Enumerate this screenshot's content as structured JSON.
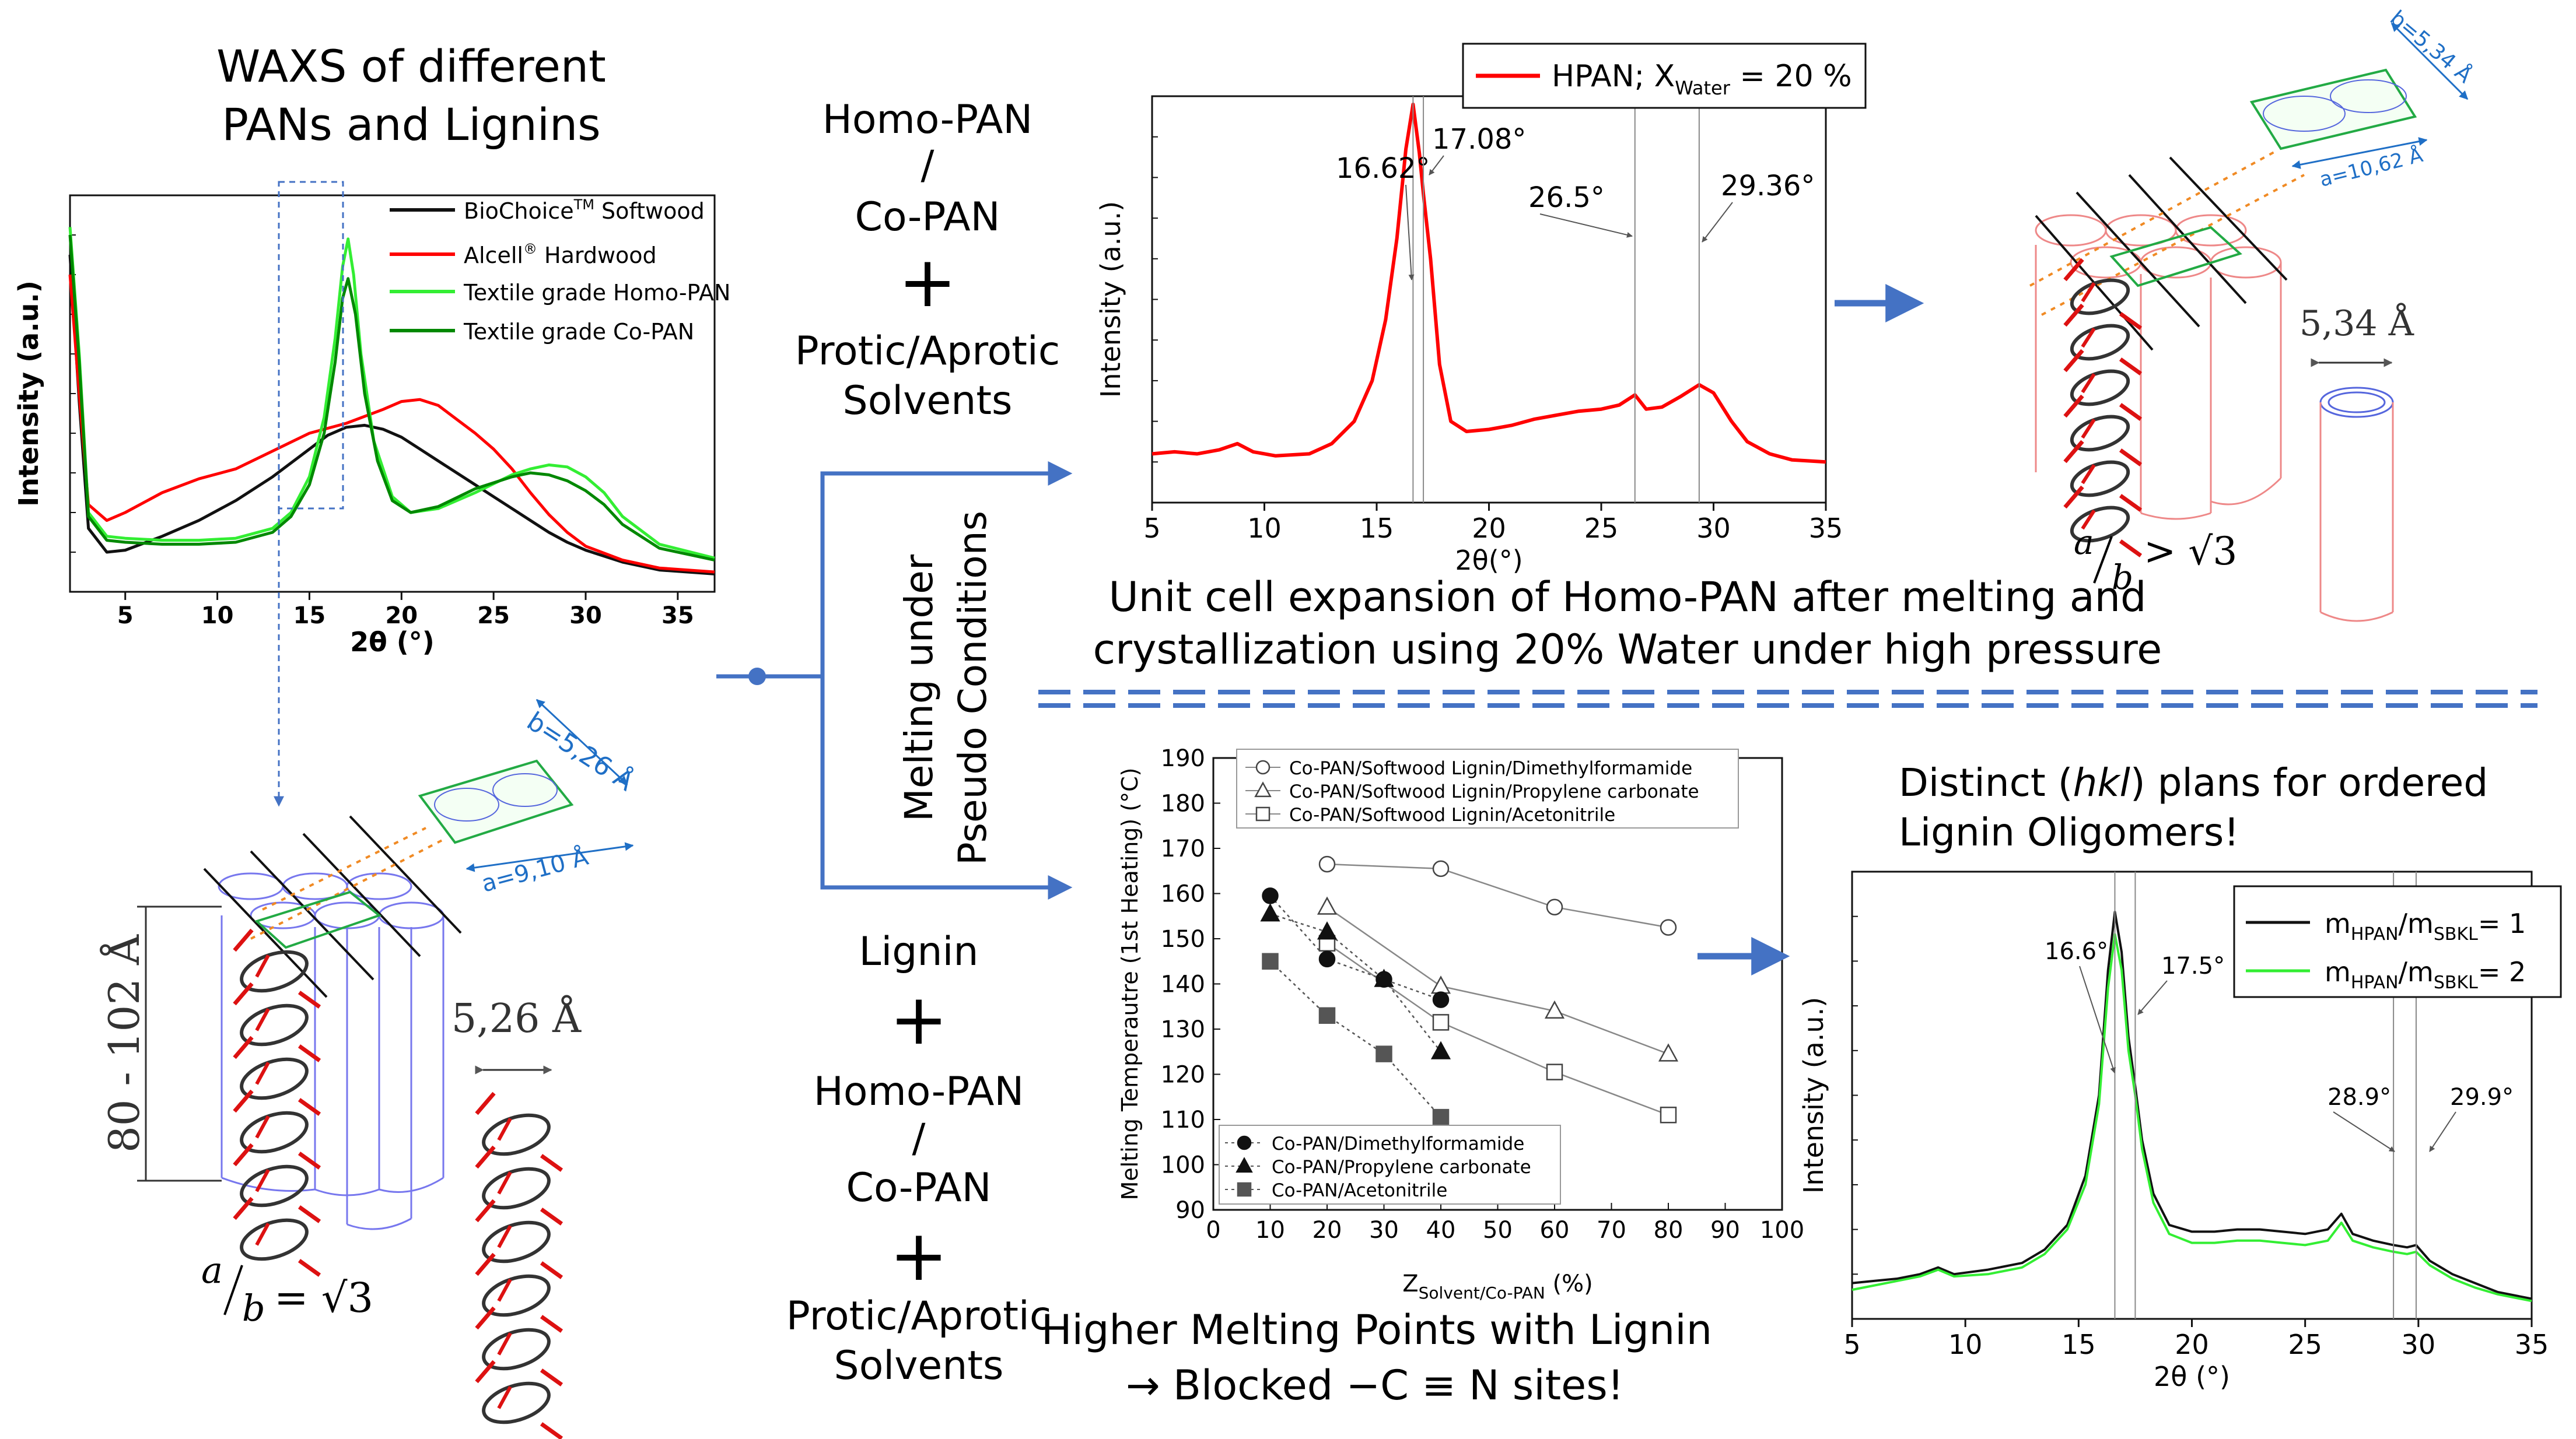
{
  "colors": {
    "arrow_blue": "#4472c4",
    "red": "#ff0000",
    "light_green": "#33ee33",
    "dark_green": "#008800",
    "black": "#111111",
    "helix_red": "#dd1111",
    "cell_green": "#22aa44",
    "dim_blue": "#1f6fc6"
  },
  "panel_waxs": {
    "title_line1": "WAXS of different",
    "title_line2": "PANs and Lignins",
    "chart_data": {
      "type": "line",
      "title": "WAXS of different PANs and Lignins",
      "xlabel": "2θ (°)",
      "ylabel": "Intensity (a.u.)",
      "xlim": [
        2,
        37
      ],
      "ylim": [
        0,
        10
      ],
      "xticks": [
        5,
        10,
        15,
        20,
        25,
        30,
        35
      ],
      "legend_position": "top-right",
      "series": [
        {
          "name": "BioChoice™ Softwood",
          "color": "#111111",
          "x": [
            2,
            2.5,
            3,
            4,
            5,
            7,
            9,
            11,
            13,
            15,
            16,
            17,
            18,
            19,
            20,
            21,
            22,
            23,
            24,
            25,
            26,
            27,
            28,
            29,
            30,
            32,
            34,
            37
          ],
          "y": [
            8.5,
            4.8,
            1.6,
            1.0,
            1.05,
            1.4,
            1.8,
            2.3,
            2.9,
            3.6,
            3.95,
            4.15,
            4.2,
            4.1,
            3.9,
            3.6,
            3.3,
            3.0,
            2.7,
            2.4,
            2.1,
            1.8,
            1.5,
            1.25,
            1.05,
            0.75,
            0.55,
            0.45
          ]
        },
        {
          "name": "Alcell® Hardwood",
          "color": "#ff0000",
          "x": [
            2,
            2.5,
            3,
            4,
            5,
            7,
            9,
            11,
            13,
            15,
            17,
            19,
            20,
            21,
            22,
            23,
            24,
            25,
            26,
            27,
            28,
            29,
            30,
            32,
            34,
            37
          ],
          "y": [
            8.0,
            5.0,
            2.2,
            1.8,
            2.0,
            2.5,
            2.85,
            3.1,
            3.55,
            4.0,
            4.25,
            4.6,
            4.8,
            4.85,
            4.7,
            4.35,
            4.0,
            3.6,
            3.1,
            2.5,
            1.95,
            1.5,
            1.15,
            0.8,
            0.6,
            0.5
          ]
        },
        {
          "name": "Textile grade Homo-PAN",
          "color": "#33ee33",
          "x": [
            2,
            2.5,
            3,
            4,
            5,
            7,
            9,
            11,
            13,
            14,
            15,
            15.8,
            16.4,
            16.8,
            17.1,
            17.4,
            17.8,
            18.5,
            19.5,
            20.5,
            22,
            24,
            26,
            27,
            28,
            29,
            30,
            31,
            32,
            34,
            37
          ],
          "y": [
            9.2,
            6.0,
            2.0,
            1.4,
            1.35,
            1.3,
            1.3,
            1.35,
            1.6,
            2.0,
            2.9,
            4.4,
            6.4,
            8.2,
            8.9,
            8.0,
            6.0,
            3.8,
            2.4,
            2.0,
            2.1,
            2.5,
            2.95,
            3.1,
            3.2,
            3.15,
            2.9,
            2.5,
            1.9,
            1.2,
            0.85
          ]
        },
        {
          "name": "Textile grade Co-PAN",
          "color": "#008800",
          "x": [
            2,
            2.5,
            3,
            4,
            5,
            7,
            9,
            11,
            13,
            14,
            15,
            15.8,
            16.4,
            16.8,
            17.1,
            17.5,
            18,
            18.7,
            19.5,
            20.5,
            22,
            24,
            26,
            27,
            28,
            29,
            30,
            31,
            32,
            34,
            37
          ],
          "y": [
            9.0,
            5.8,
            1.9,
            1.3,
            1.25,
            1.2,
            1.2,
            1.25,
            1.5,
            1.9,
            2.7,
            4.0,
            5.8,
            7.4,
            7.9,
            7.0,
            5.0,
            3.3,
            2.3,
            2.0,
            2.15,
            2.6,
            2.9,
            3.0,
            2.95,
            2.8,
            2.55,
            2.2,
            1.7,
            1.1,
            0.8
          ]
        }
      ]
    },
    "legend": [
      {
        "base": "BioChoice",
        "sup": "TM",
        "tail": " Softwood"
      },
      {
        "base": "Alcell",
        "sup": "®",
        "tail": " Hardwood"
      },
      {
        "base": "Textile grade Homo-PAN",
        "sup": "",
        "tail": ""
      },
      {
        "base": "Textile grade Co-PAN",
        "sup": "",
        "tail": ""
      }
    ]
  },
  "panel_unitcell_left": {
    "b_label": "b=5,26 Å",
    "a_label": "a=9,10 Å",
    "height_label": "80 - 102 Å",
    "spacing_label": "5,26 Å",
    "ratio_a": "a",
    "ratio_b": "b",
    "ratio_eq": "= √3"
  },
  "center_top": {
    "lines": [
      "Homo-PAN",
      "/",
      "Co-PAN",
      "+",
      "Protic/Aprotic",
      "Solvents"
    ]
  },
  "center_bottom": {
    "lines": [
      "Lignin",
      "+",
      "Homo-PAN",
      "/",
      "Co-PAN",
      "+",
      "Protic/Aprotic",
      "Solvents"
    ]
  },
  "branch_label": {
    "line1": "Melting under",
    "line2": "Pseudo Conditions"
  },
  "panel_hpan": {
    "legend_base": "HPAN; X",
    "legend_sub": "Water",
    "legend_tail": " = 20 %",
    "chart_data": {
      "type": "line",
      "xlabel": "2θ(°)",
      "ylabel": "Intensity (a.u.)",
      "xlim": [
        5,
        35
      ],
      "ylim": [
        0,
        10
      ],
      "xticks": [
        5,
        10,
        15,
        20,
        25,
        30,
        35
      ],
      "legend_position": "top-right",
      "series": [
        {
          "name": "HPAN; XWater = 20 %",
          "color": "#ff0000",
          "x": [
            5,
            6,
            7,
            8,
            8.8,
            9.5,
            10.5,
            12,
            13,
            14,
            14.8,
            15.4,
            15.9,
            16.3,
            16.62,
            16.9,
            17.08,
            17.4,
            17.8,
            18.3,
            19,
            20,
            21,
            22,
            23,
            24,
            25,
            25.8,
            26.5,
            27,
            27.7,
            28.5,
            29.36,
            30,
            30.8,
            31.5,
            32.5,
            33.5,
            35
          ],
          "y": [
            1.2,
            1.25,
            1.2,
            1.3,
            1.45,
            1.25,
            1.15,
            1.2,
            1.45,
            2.0,
            3.0,
            4.5,
            6.5,
            8.7,
            9.8,
            8.6,
            7.6,
            6.0,
            3.4,
            2.0,
            1.75,
            1.8,
            1.9,
            2.05,
            2.15,
            2.25,
            2.3,
            2.4,
            2.65,
            2.3,
            2.35,
            2.6,
            2.9,
            2.7,
            2.0,
            1.5,
            1.2,
            1.05,
            1.0
          ]
        }
      ]
    },
    "annotations": [
      {
        "label": "16.62°",
        "x": 16.62
      },
      {
        "label": "17.08°",
        "x": 17.08
      },
      {
        "label": "26.5°",
        "x": 26.5
      },
      {
        "label": "29.36°",
        "x": 29.36
      }
    ],
    "caption_line1": "Unit cell expansion of Homo-PAN after melting and",
    "caption_line2": "crystallization using 20% Water under high pressure"
  },
  "panel_unitcell_right": {
    "b_label": "b=5,34 Å",
    "a_label": "a=10,62 Å",
    "spacing_label": "5,34 Å",
    "ratio_a": "a",
    "ratio_b": "b",
    "ratio_eq": "> √3"
  },
  "panel_melting": {
    "chart_data": {
      "type": "scatter",
      "xlabel_base": "Z",
      "xlabel_sub": "Solvent/Co-PAN",
      "xlabel_tail": " (%)",
      "ylabel": "Melting Temperautre (1st Heating) (°C)",
      "xlim": [
        0,
        100
      ],
      "ylim": [
        90,
        190
      ],
      "xticks": [
        0,
        10,
        20,
        30,
        40,
        50,
        60,
        70,
        80,
        90,
        100
      ],
      "yticks": [
        90,
        100,
        110,
        120,
        130,
        140,
        150,
        160,
        170,
        180,
        190
      ],
      "series": [
        {
          "name": "Co-PAN/Softwood Lignin/Dimethylformamide",
          "marker": "circle-open",
          "line": "solid",
          "x": [
            20,
            40,
            60,
            80
          ],
          "y": [
            166.5,
            165.5,
            157,
            152.5
          ]
        },
        {
          "name": "Co-PAN/Softwood Lignin/Propylene carbonate",
          "marker": "triangle-open",
          "line": "solid",
          "x": [
            20,
            40,
            60,
            80
          ],
          "y": [
            157,
            139.5,
            134,
            124.5
          ]
        },
        {
          "name": "Co-PAN/Softwood Lignin/Acetonitrile",
          "marker": "square-open",
          "line": "solid",
          "x": [
            20,
            40,
            60,
            80
          ],
          "y": [
            149,
            131.5,
            120.5,
            111
          ]
        },
        {
          "name": "Co-PAN/Dimethylformamide",
          "marker": "circle-filled",
          "line": "dotted",
          "x": [
            10,
            20,
            30,
            40
          ],
          "y": [
            159.5,
            145.5,
            141,
            136.5
          ]
        },
        {
          "name": "Co-PAN/Propylene carbonate",
          "marker": "triangle-filled",
          "line": "dotted",
          "x": [
            10,
            20,
            30,
            40
          ],
          "y": [
            155.5,
            151.5,
            141,
            125
          ]
        },
        {
          "name": "Co-PAN/Acetonitrile",
          "marker": "square-filled",
          "line": "dotted",
          "x": [
            10,
            20,
            30,
            40
          ],
          "y": [
            145,
            133,
            124.5,
            110.5
          ]
        }
      ]
    },
    "caption_line1": "Higher Melting Points with Lignin",
    "caption_line2": "→ Blocked −C ≡ N sites!"
  },
  "panel_lignin_waxs": {
    "heading_line1_pre": "Distinct (",
    "heading_line1_em": "hkl",
    "heading_line1_post": ") plans for ordered",
    "heading_line2": "Lignin Oligomers!",
    "legend": [
      {
        "m1": "m",
        "s1": "HPAN",
        "slash": "/m",
        "s2": "SBKL",
        "tail": "= 1"
      },
      {
        "m1": "m",
        "s1": "HPAN",
        "slash": "/m",
        "s2": "SBKL",
        "tail": "= 2"
      }
    ],
    "chart_data": {
      "type": "line",
      "xlabel": "2θ (°)",
      "ylabel": "Intensity (a.u.)",
      "xlim": [
        5,
        35
      ],
      "ylim": [
        0,
        10
      ],
      "xticks": [
        5,
        10,
        15,
        20,
        25,
        30,
        35
      ],
      "legend_position": "top-right",
      "series": [
        {
          "name": "mHPAN/mSBKL= 1",
          "color": "#111111",
          "x": [
            5,
            6,
            7,
            8,
            8.8,
            9.5,
            11,
            12.5,
            13.5,
            14.5,
            15.3,
            15.9,
            16.3,
            16.6,
            16.9,
            17.2,
            17.5,
            17.8,
            18.3,
            19,
            20,
            21,
            22,
            23,
            24,
            25,
            26,
            26.6,
            27.1,
            28,
            28.9,
            29.5,
            29.9,
            30.5,
            31.5,
            32.5,
            33.5,
            35
          ],
          "y": [
            0.8,
            0.85,
            0.9,
            1.0,
            1.15,
            1.0,
            1.1,
            1.25,
            1.55,
            2.1,
            3.2,
            5.0,
            7.8,
            9.1,
            8.2,
            6.3,
            5.2,
            4.0,
            2.8,
            2.1,
            1.95,
            1.95,
            2.0,
            2.0,
            1.95,
            1.9,
            2.0,
            2.35,
            1.9,
            1.75,
            1.65,
            1.6,
            1.65,
            1.3,
            1.0,
            0.8,
            0.6,
            0.45
          ]
        },
        {
          "name": "mHPAN/mSBKL= 2",
          "color": "#33ee33",
          "x": [
            5,
            6,
            7,
            8,
            8.8,
            9.5,
            11,
            12.5,
            13.5,
            14.5,
            15.3,
            15.9,
            16.3,
            16.6,
            16.9,
            17.2,
            17.5,
            17.8,
            18.3,
            19,
            20,
            21,
            22,
            23,
            24,
            25,
            26,
            26.6,
            27.1,
            28,
            28.9,
            29.5,
            29.9,
            30.5,
            31.5,
            32.5,
            33.5,
            35
          ],
          "y": [
            0.65,
            0.75,
            0.85,
            0.95,
            1.1,
            0.95,
            1.0,
            1.15,
            1.45,
            2.0,
            3.0,
            4.8,
            7.4,
            8.6,
            7.8,
            6.0,
            5.0,
            3.8,
            2.6,
            1.9,
            1.7,
            1.7,
            1.75,
            1.75,
            1.7,
            1.65,
            1.75,
            2.15,
            1.75,
            1.6,
            1.5,
            1.45,
            1.5,
            1.2,
            0.9,
            0.7,
            0.55,
            0.4
          ]
        }
      ]
    },
    "annotations": [
      {
        "label": "16.6°",
        "x": 16.6
      },
      {
        "label": "17.5°",
        "x": 17.5
      },
      {
        "label": "28.9°",
        "x": 28.9
      },
      {
        "label": "29.9°",
        "x": 29.9
      }
    ]
  }
}
